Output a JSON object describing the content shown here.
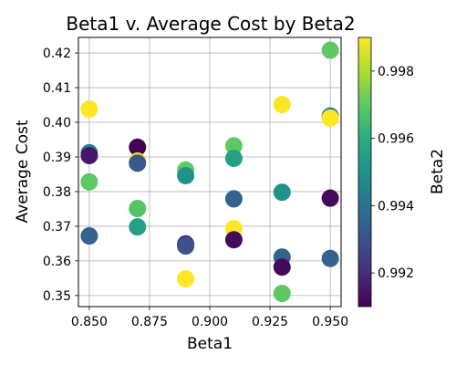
{
  "chart_data": {
    "type": "scatter",
    "title": "Beta1 v. Average Cost by Beta2",
    "xlabel": "Beta1",
    "ylabel": "Average Cost",
    "colorbar_label": "Beta2",
    "xlim": [
      0.8455,
      0.9545
    ],
    "ylim": [
      0.3468,
      0.4245
    ],
    "xticks": [
      0.85,
      0.875,
      0.9,
      0.925,
      0.95
    ],
    "xtick_labels": [
      "0.850",
      "0.875",
      "0.900",
      "0.925",
      "0.950"
    ],
    "yticks": [
      0.35,
      0.36,
      0.37,
      0.38,
      0.39,
      0.4,
      0.41,
      0.42
    ],
    "ytick_labels": [
      "0.35",
      "0.36",
      "0.37",
      "0.38",
      "0.39",
      "0.40",
      "0.41",
      "0.42"
    ],
    "clim": [
      0.991,
      0.999
    ],
    "cticks": [
      0.992,
      0.994,
      0.996,
      0.998
    ],
    "ctick_labels": [
      "0.992",
      "0.994",
      "0.996",
      "0.998"
    ],
    "colormap": "viridis",
    "grid": true,
    "points": [
      {
        "x": 0.85,
        "y": 0.4038,
        "c": 0.999
      },
      {
        "x": 0.85,
        "y": 0.3912,
        "c": 0.9945
      },
      {
        "x": 0.85,
        "y": 0.3904,
        "c": 0.9915
      },
      {
        "x": 0.85,
        "y": 0.3828,
        "c": 0.997
      },
      {
        "x": 0.85,
        "y": 0.3672,
        "c": 0.9935
      },
      {
        "x": 0.87,
        "y": 0.3928,
        "c": 0.991
      },
      {
        "x": 0.87,
        "y": 0.3888,
        "c": 0.9988
      },
      {
        "x": 0.87,
        "y": 0.3882,
        "c": 0.9932
      },
      {
        "x": 0.87,
        "y": 0.3751,
        "c": 0.9968
      },
      {
        "x": 0.87,
        "y": 0.3698,
        "c": 0.9955
      },
      {
        "x": 0.89,
        "y": 0.3862,
        "c": 0.997
      },
      {
        "x": 0.89,
        "y": 0.3846,
        "c": 0.995
      },
      {
        "x": 0.89,
        "y": 0.3649,
        "c": 0.992
      },
      {
        "x": 0.89,
        "y": 0.3643,
        "c": 0.993
      },
      {
        "x": 0.89,
        "y": 0.3548,
        "c": 0.999
      },
      {
        "x": 0.91,
        "y": 0.3932,
        "c": 0.997
      },
      {
        "x": 0.91,
        "y": 0.3896,
        "c": 0.9955
      },
      {
        "x": 0.91,
        "y": 0.3779,
        "c": 0.9935
      },
      {
        "x": 0.91,
        "y": 0.3693,
        "c": 0.999
      },
      {
        "x": 0.91,
        "y": 0.3661,
        "c": 0.9912
      },
      {
        "x": 0.93,
        "y": 0.4051,
        "c": 0.999
      },
      {
        "x": 0.93,
        "y": 0.3798,
        "c": 0.995
      },
      {
        "x": 0.93,
        "y": 0.3611,
        "c": 0.9935
      },
      {
        "x": 0.93,
        "y": 0.3582,
        "c": 0.9912
      },
      {
        "x": 0.93,
        "y": 0.3506,
        "c": 0.997
      },
      {
        "x": 0.95,
        "y": 0.4208,
        "c": 0.997
      },
      {
        "x": 0.95,
        "y": 0.4018,
        "c": 0.9945
      },
      {
        "x": 0.95,
        "y": 0.4012,
        "c": 0.999
      },
      {
        "x": 0.95,
        "y": 0.3781,
        "c": 0.9912
      },
      {
        "x": 0.95,
        "y": 0.3607,
        "c": 0.9935
      }
    ]
  }
}
